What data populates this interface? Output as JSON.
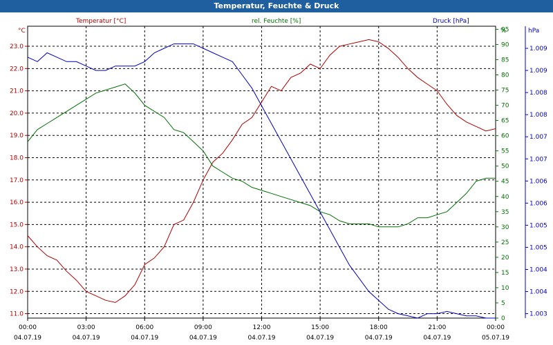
{
  "window": {
    "title": "Temperatur, Feuchte & Druck"
  },
  "colors": {
    "temperature": "#b00000",
    "humidity": "#007000",
    "pressure": "#0000c0",
    "titlebar": "#1f5f9f",
    "text": "#000000"
  },
  "chart_data": {
    "type": "line",
    "title": "Temperatur, Feuchte & Druck",
    "grid": true,
    "legend": "top, above each axis",
    "x_ticks": [
      {
        "time": "00:00",
        "date": "04.07.19"
      },
      {
        "time": "03:00",
        "date": "04.07.19"
      },
      {
        "time": "06:00",
        "date": "04.07.19"
      },
      {
        "time": "09:00",
        "date": "04.07.19"
      },
      {
        "time": "12:00",
        "date": "04.07.19"
      },
      {
        "time": "15:00",
        "date": "04.07.19"
      },
      {
        "time": "18:00",
        "date": "04.07.19"
      },
      {
        "time": "21:00",
        "date": "04.07.19"
      },
      {
        "time": "00:00",
        "date": "05.07.19"
      }
    ],
    "xlim": [
      "04.07.19 00:00",
      "05.07.19 00:00"
    ],
    "axes": {
      "temperature": {
        "label": "Temperatur [°C]",
        "unit": "°C",
        "ylim": [
          10.8,
          23.9
        ],
        "ticks": [
          "11.0",
          "12.0",
          "13.0",
          "14.0",
          "15.0",
          "16.0",
          "17.0",
          "18.0",
          "19.0",
          "20.0",
          "21.0",
          "22.0",
          "23.0"
        ]
      },
      "humidity": {
        "label": "rel. Feuchte [%]",
        "unit": "%",
        "ylim": [
          0,
          96
        ],
        "ticks": [
          "0",
          "5",
          "10",
          "15",
          "20",
          "25",
          "30",
          "35",
          "40",
          "45",
          "50",
          "55",
          "60",
          "65",
          "70",
          "75",
          "80",
          "85",
          "90",
          "95"
        ]
      },
      "pressure": {
        "label": "Druck [hPa]",
        "unit": "hPa",
        "ylim": [
          1003.0,
          1009.6
        ],
        "ticks": [
          "1.003",
          "1.004",
          "1.004",
          "1.005",
          "1.005",
          "1.006",
          "1.006",
          "1.007",
          "1.007",
          "1.008",
          "1.008",
          "1.009",
          "1.009"
        ]
      }
    },
    "x_hours": [
      0,
      0.5,
      1,
      1.5,
      2,
      2.5,
      3,
      3.5,
      4,
      4.5,
      5,
      5.5,
      6,
      6.5,
      7,
      7.5,
      8,
      8.5,
      9,
      9.5,
      10,
      10.5,
      11,
      11.5,
      12,
      12.5,
      13,
      13.5,
      14,
      14.5,
      15,
      15.5,
      16,
      16.5,
      17,
      17.5,
      18,
      18.5,
      19,
      19.5,
      20,
      20.5,
      21,
      21.5,
      22,
      22.5,
      23,
      23.5,
      24
    ],
    "series": [
      {
        "name": "Temperatur [°C]",
        "axis": "temperature",
        "values": [
          14.5,
          14.0,
          13.6,
          13.4,
          12.9,
          12.5,
          12.0,
          11.8,
          11.6,
          11.5,
          11.8,
          12.3,
          13.2,
          13.5,
          14.0,
          15.0,
          15.2,
          16.0,
          17.0,
          17.8,
          18.2,
          18.8,
          19.5,
          19.8,
          20.5,
          21.2,
          21.0,
          21.6,
          21.8,
          22.2,
          22.0,
          22.6,
          23.0,
          23.1,
          23.2,
          23.3,
          23.2,
          22.9,
          22.5,
          22.0,
          21.6,
          21.3,
          21.0,
          20.4,
          19.9,
          19.6,
          19.4,
          19.2,
          19.3
        ]
      },
      {
        "name": "rel. Feuchte [%]",
        "axis": "humidity",
        "values": [
          58,
          62,
          64,
          66,
          68,
          70,
          72,
          74,
          75,
          76,
          77,
          74,
          70,
          68,
          66,
          62,
          61,
          58,
          55,
          50,
          48,
          46,
          45,
          43,
          42,
          41,
          40,
          39,
          38,
          37,
          35,
          34,
          32,
          31,
          31,
          31,
          30,
          30,
          30,
          31,
          33,
          33,
          34,
          35,
          38,
          41,
          45,
          46,
          46
        ]
      },
      {
        "name": "Druck [hPa]",
        "axis": "pressure",
        "values": [
          1008.9,
          1008.8,
          1009.0,
          1008.9,
          1008.8,
          1008.8,
          1008.7,
          1008.6,
          1008.6,
          1008.7,
          1008.7,
          1008.7,
          1008.8,
          1009.0,
          1009.1,
          1009.2,
          1009.2,
          1009.2,
          1009.1,
          1009.0,
          1008.9,
          1008.8,
          1008.5,
          1008.2,
          1007.8,
          1007.4,
          1007.0,
          1006.6,
          1006.2,
          1005.8,
          1005.4,
          1005.0,
          1004.6,
          1004.2,
          1003.9,
          1003.6,
          1003.4,
          1003.2,
          1003.1,
          1003.05,
          1003.0,
          1003.1,
          1003.1,
          1003.15,
          1003.1,
          1003.05,
          1003.05,
          1003.0,
          1003.0
        ]
      }
    ]
  }
}
